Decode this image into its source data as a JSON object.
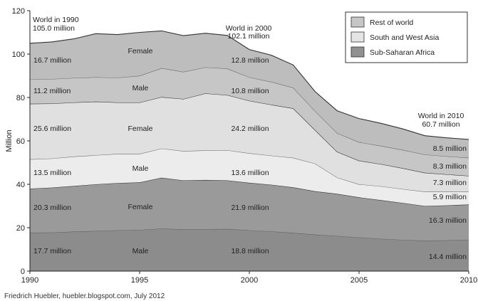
{
  "chart_data": {
    "type": "area",
    "stacked": true,
    "ylabel": "Million",
    "xlim": [
      1990,
      2010
    ],
    "ylim": [
      0,
      120
    ],
    "xticks": [
      1990,
      1995,
      2000,
      2005,
      2010
    ],
    "yticks": [
      0,
      20,
      40,
      60,
      80,
      100,
      120
    ],
    "x": [
      1990,
      1991,
      1992,
      1993,
      1994,
      1995,
      1996,
      1997,
      1998,
      1999,
      2000,
      2001,
      2002,
      2003,
      2004,
      2005,
      2006,
      2007,
      2008,
      2009,
      2010
    ],
    "series": [
      {
        "region": "Sub-Saharan Africa",
        "sex": "Male",
        "fill": "#8c8c8c",
        "values": [
          17.7,
          17.8,
          18.2,
          18.5,
          18.8,
          19.0,
          19.6,
          19.2,
          19.3,
          19.4,
          18.8,
          18.3,
          17.6,
          16.8,
          16.2,
          15.5,
          14.9,
          14.4,
          14.0,
          14.2,
          14.4
        ]
      },
      {
        "region": "Sub-Saharan Africa",
        "sex": "Female",
        "fill": "#9a9a9a",
        "values": [
          20.3,
          20.7,
          21.0,
          21.5,
          21.8,
          21.9,
          23.4,
          22.6,
          22.7,
          22.4,
          21.9,
          21.5,
          21.0,
          20.0,
          19.4,
          18.5,
          17.8,
          17.0,
          16.0,
          16.1,
          16.3
        ]
      },
      {
        "region": "South and West Asia",
        "sex": "Male",
        "fill": "#ececec",
        "values": [
          13.5,
          13.4,
          13.6,
          13.4,
          13.4,
          13.1,
          13.5,
          13.5,
          13.6,
          13.9,
          13.6,
          13.4,
          13.6,
          12.7,
          7.5,
          6.0,
          6.4,
          6.4,
          6.6,
          6.3,
          5.9
        ]
      },
      {
        "region": "South and West Asia",
        "sex": "Female",
        "fill": "#e0e0e0",
        "values": [
          25.6,
          25.3,
          24.9,
          24.7,
          23.7,
          23.7,
          23.7,
          24.0,
          26.3,
          25.4,
          24.2,
          23.5,
          22.8,
          15.5,
          11.9,
          10.9,
          10.2,
          9.6,
          8.7,
          8.0,
          7.3
        ]
      },
      {
        "region": "Rest of world",
        "sex": "Male",
        "fill": "#c6c6c6",
        "values": [
          11.2,
          11.3,
          11.3,
          11.2,
          11.4,
          12.3,
          13.3,
          12.5,
          12.0,
          12.2,
          10.8,
          10.5,
          9.5,
          8.7,
          8.6,
          8.5,
          8.4,
          8.4,
          8.4,
          8.3,
          8.3
        ]
      },
      {
        "region": "Rest of world",
        "sex": "Female",
        "fill": "#bdbdbd",
        "values": [
          16.7,
          17.1,
          18.0,
          20.1,
          19.9,
          20.0,
          17.2,
          16.7,
          15.7,
          15.3,
          12.8,
          12.3,
          10.5,
          9.0,
          10.3,
          10.9,
          10.4,
          9.7,
          8.7,
          8.5,
          8.5
        ]
      }
    ],
    "legend": {
      "position": "top-right",
      "entries": [
        {
          "label": "Rest of world",
          "fill": "#c6c6c6"
        },
        {
          "label": "South and West Asia",
          "fill": "#e4e4e4"
        },
        {
          "label": "Sub-Saharan Africa",
          "fill": "#909090"
        }
      ]
    },
    "annotations": {
      "world_1990": {
        "line1": "World in 1990",
        "line2": "105.0 million"
      },
      "world_2000": {
        "line1": "World in 2000",
        "line2": "102.1 million"
      },
      "world_2010": {
        "line1": "World in 2010",
        "line2": "60.7 million"
      },
      "values_1990": [
        "16.7 million",
        "11.2 million",
        "25.6 million",
        "13.5 million",
        "20.3 million",
        "17.7 million"
      ],
      "values_2000": [
        "12.8 million",
        "10.8 million",
        "24.2 million",
        "13.6 million",
        "21.9 million",
        "18.8 million"
      ],
      "values_2010": [
        "8.5 million",
        "8.3 million",
        "7.3 million",
        "5.9 million",
        "16.3 million",
        "14.4 million"
      ],
      "sex_labels": [
        "Female",
        "Male",
        "Female",
        "Male",
        "Female",
        "Male"
      ]
    },
    "grid": false
  },
  "source": "Friedrich Huebler, huebler.blogspot.com, July 2012"
}
